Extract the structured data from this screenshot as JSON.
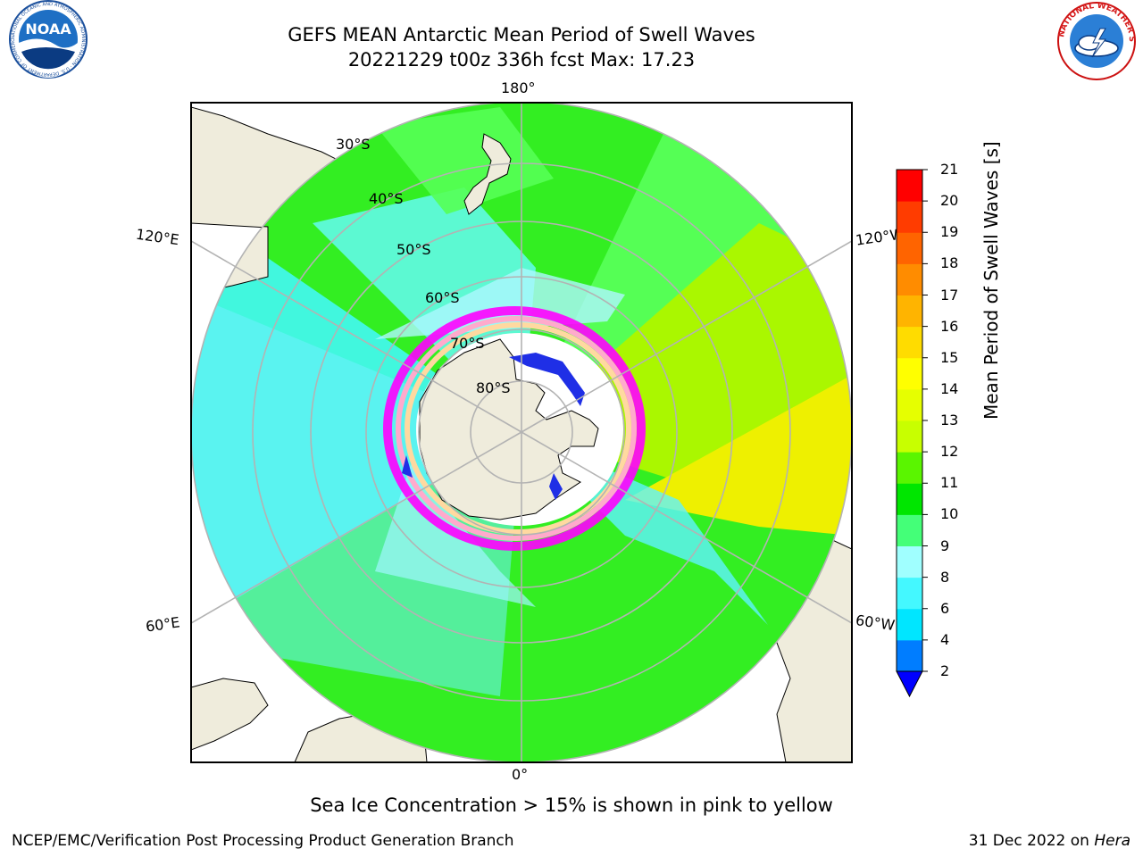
{
  "header": {
    "title_line1": "GEFS MEAN Antarctic Mean Period of Swell Waves",
    "title_line2": "20221229 t00z 336h fcst   Max: 17.23"
  },
  "logos": {
    "left": {
      "name": "NOAA",
      "ring_text": "NATIONAL OCEANIC AND ATMOSPHERIC ADMINISTRATION · U.S. DEPARTMENT OF COMMERCE"
    },
    "right": {
      "name": "NATIONAL WEATHER SERVICE"
    }
  },
  "map": {
    "projection": "south polar stereographic",
    "lon_labels": [
      "180°",
      "120°E",
      "120°W",
      "60°E",
      "60°W",
      "0°"
    ],
    "lat_labels": [
      "30°S",
      "40°S",
      "50°S",
      "60°S",
      "70°S",
      "80°S"
    ],
    "colors": {
      "land": "#efecdc",
      "grid": "#b3b3b3",
      "sea_ice": [
        "#ff00ff",
        "#ff88cc",
        "#ffcc88",
        "#ffffff"
      ]
    }
  },
  "colorbar": {
    "label": "Mean Period of Swell Waves [s]",
    "ticks": [
      "2",
      "4",
      "6",
      "8",
      "9",
      "10",
      "11",
      "12",
      "13",
      "14",
      "15",
      "16",
      "17",
      "18",
      "19",
      "20",
      "21"
    ],
    "colors": [
      "#0000ff",
      "#007dff",
      "#00e6ff",
      "#44f8ff",
      "#a0ffff",
      "#44ff78",
      "#00e600",
      "#5af500",
      "#c8ff00",
      "#e6ff00",
      "#ffff00",
      "#ffdc00",
      "#ffb400",
      "#ff8c00",
      "#ff6400",
      "#ff3c00",
      "#ff0000"
    ]
  },
  "note": "Sea Ice Concentration > 15% is shown in pink to yellow",
  "footer": {
    "left": "NCEP/EMC/Verification Post Processing Product Generation Branch",
    "right_prefix": "31 Dec 2022 on ",
    "right_host": "Hera"
  }
}
